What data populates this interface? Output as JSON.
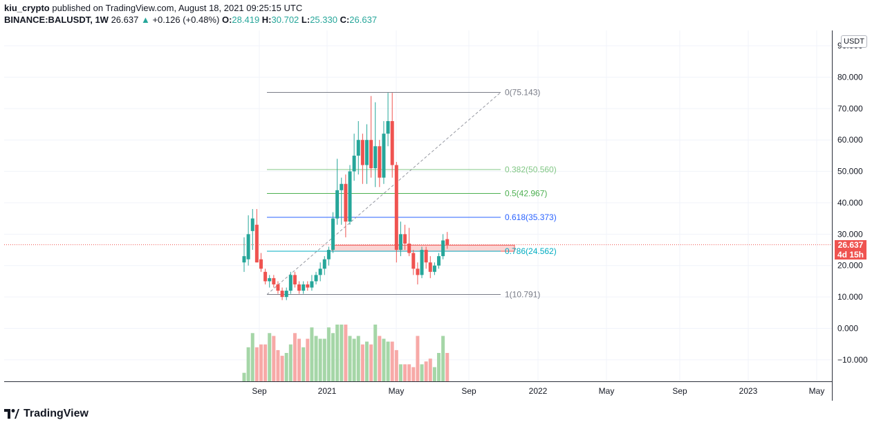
{
  "header": {
    "user": "kiu_crypto",
    "published": "published on TradingView.com, August 18, 2021 09:25:15 UTC",
    "symbol": "BINANCE:BALUSDT, 1W",
    "last": "26.637",
    "arrow": "▲",
    "change": "+0.126 (+0.48%)",
    "o_label": "O:",
    "o": "28.419",
    "h_label": "H:",
    "h": "30.702",
    "l_label": "L:",
    "l": "25.330",
    "c_label": "C:",
    "c": "26.637"
  },
  "axis": {
    "currency": "USDT",
    "price_tag": "26.637",
    "countdown": "4d 15h"
  },
  "footer": {
    "brand": "TradingView"
  },
  "colors": {
    "up": "#26a69a",
    "down": "#ef5350",
    "vol_up": "#a5d6a7",
    "vol_down": "#f7a9a7"
  },
  "chart_data": {
    "type": "candlestick",
    "timeframe": "1W",
    "y_ticks": [
      "90.000",
      "80.000",
      "70.000",
      "60.000",
      "50.000",
      "40.000",
      "30.000",
      "20.000",
      "10.000",
      "0.000",
      "−10.000"
    ],
    "y_values": [
      90,
      80,
      70,
      60,
      50,
      40,
      30,
      20,
      10,
      0,
      -10
    ],
    "ylim": [
      -17,
      95
    ],
    "x_ticks": [
      "Sep",
      "2021",
      "May",
      "Sep",
      "2022",
      "May",
      "Sep",
      "2023",
      "May"
    ],
    "last_price": 26.637,
    "fib": [
      {
        "label": "0(75.143)",
        "value": 75.143,
        "color": "#787b86"
      },
      {
        "label": "0.382(50.560)",
        "value": 50.56,
        "color": "#81c784"
      },
      {
        "label": "0.5(42.967)",
        "value": 42.967,
        "color": "#4caf50"
      },
      {
        "label": "0.618(35.373)",
        "value": 35.373,
        "color": "#2962ff"
      },
      {
        "label": "0.786(24.562)",
        "value": 24.562,
        "color": "#00acc1"
      },
      {
        "label": "1(10.791)",
        "value": 10.791,
        "color": "#787b86"
      }
    ],
    "candles": [
      {
        "o": 21,
        "h": 29,
        "l": 18,
        "c": 23
      },
      {
        "o": 22,
        "h": 36,
        "l": 20,
        "c": 30
      },
      {
        "o": 31,
        "h": 38,
        "l": 25,
        "c": 35
      },
      {
        "o": 33,
        "h": 38,
        "l": 21,
        "c": 21
      },
      {
        "o": 22,
        "h": 24,
        "l": 18,
        "c": 19
      },
      {
        "o": 18,
        "h": 19,
        "l": 14,
        "c": 15
      },
      {
        "o": 15,
        "h": 17,
        "l": 13,
        "c": 16
      },
      {
        "o": 16,
        "h": 17,
        "l": 13,
        "c": 14
      },
      {
        "o": 14,
        "h": 15,
        "l": 11,
        "c": 12
      },
      {
        "o": 12,
        "h": 13,
        "l": 9,
        "c": 10
      },
      {
        "o": 10,
        "h": 13,
        "l": 9,
        "c": 12
      },
      {
        "o": 12,
        "h": 18,
        "l": 11,
        "c": 17
      },
      {
        "o": 17,
        "h": 18,
        "l": 13,
        "c": 14
      },
      {
        "o": 14,
        "h": 15,
        "l": 11,
        "c": 12
      },
      {
        "o": 12,
        "h": 15,
        "l": 11,
        "c": 14
      },
      {
        "o": 14,
        "h": 15,
        "l": 12,
        "c": 13
      },
      {
        "o": 13,
        "h": 17,
        "l": 12,
        "c": 15
      },
      {
        "o": 15,
        "h": 18,
        "l": 14,
        "c": 17
      },
      {
        "o": 17,
        "h": 21,
        "l": 15,
        "c": 19
      },
      {
        "o": 19,
        "h": 23,
        "l": 17,
        "c": 22
      },
      {
        "o": 22,
        "h": 26,
        "l": 20,
        "c": 25
      },
      {
        "o": 25,
        "h": 37,
        "l": 24,
        "c": 35
      },
      {
        "o": 35,
        "h": 54,
        "l": 33,
        "c": 44
      },
      {
        "o": 44,
        "h": 48,
        "l": 33,
        "c": 46
      },
      {
        "o": 46,
        "h": 49,
        "l": 29,
        "c": 34
      },
      {
        "o": 34,
        "h": 52,
        "l": 33,
        "c": 50
      },
      {
        "o": 50,
        "h": 62,
        "l": 47,
        "c": 55
      },
      {
        "o": 55,
        "h": 66,
        "l": 49,
        "c": 60
      },
      {
        "o": 60,
        "h": 62,
        "l": 46,
        "c": 52
      },
      {
        "o": 52,
        "h": 65,
        "l": 46,
        "c": 60
      },
      {
        "o": 60,
        "h": 74,
        "l": 48,
        "c": 51
      },
      {
        "o": 51,
        "h": 72,
        "l": 45,
        "c": 58
      },
      {
        "o": 58,
        "h": 60,
        "l": 45,
        "c": 48
      },
      {
        "o": 48,
        "h": 66,
        "l": 46,
        "c": 62
      },
      {
        "o": 62,
        "h": 75,
        "l": 58,
        "c": 66
      },
      {
        "o": 66,
        "h": 75,
        "l": 48,
        "c": 52
      },
      {
        "o": 52,
        "h": 53,
        "l": 21,
        "c": 25
      },
      {
        "o": 25,
        "h": 34,
        "l": 23,
        "c": 30
      },
      {
        "o": 30,
        "h": 33,
        "l": 25,
        "c": 27
      },
      {
        "o": 27,
        "h": 32,
        "l": 23,
        "c": 24
      },
      {
        "o": 24,
        "h": 25,
        "l": 17,
        "c": 19
      },
      {
        "o": 19,
        "h": 21,
        "l": 14,
        "c": 17
      },
      {
        "o": 17,
        "h": 26,
        "l": 16,
        "c": 25
      },
      {
        "o": 25,
        "h": 26,
        "l": 19,
        "c": 21
      },
      {
        "o": 21,
        "h": 23,
        "l": 16,
        "c": 18
      },
      {
        "o": 18,
        "h": 21,
        "l": 17,
        "c": 20
      },
      {
        "o": 20,
        "h": 24,
        "l": 19,
        "c": 23
      },
      {
        "o": 23,
        "h": 30,
        "l": 22,
        "c": 28
      },
      {
        "o": 28.419,
        "h": 30.702,
        "l": 25.33,
        "c": 26.637
      }
    ],
    "volume_rel": [
      0.15,
      0.6,
      0.85,
      0.6,
      0.65,
      0.65,
      0.85,
      0.8,
      0.55,
      0.45,
      0.5,
      0.65,
      0.85,
      0.75,
      0.6,
      0.75,
      0.95,
      0.8,
      0.75,
      0.75,
      0.95,
      0.85,
      1.0,
      1.0,
      1.0,
      0.8,
      0.75,
      0.8,
      0.65,
      0.7,
      0.65,
      1.0,
      0.8,
      0.75,
      0.7,
      0.7,
      0.55,
      0.3,
      0.3,
      0.3,
      0.25,
      0.8,
      0.3,
      0.35,
      0.4,
      0.25,
      0.5,
      0.8,
      0.5
    ]
  }
}
